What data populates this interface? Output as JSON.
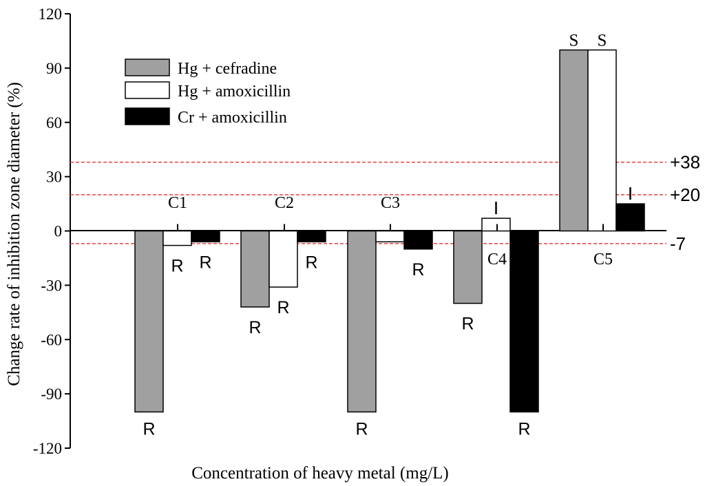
{
  "chart_data": {
    "type": "bar",
    "ylabel": "Change rate of inhibition zone diameter (%)",
    "xlabel": "Concentration of heavy metal (mg/L)",
    "ylim": [
      -120,
      120
    ],
    "yticks": [
      120,
      90,
      60,
      30,
      0,
      -30,
      -60,
      -90,
      -120
    ],
    "categories": [
      "C1",
      "C2",
      "C3",
      "C4",
      "C5"
    ],
    "series": [
      {
        "name": "Hg + cefradine",
        "color": "#a0a0a0",
        "values": [
          -100,
          -42,
          -100,
          -40,
          100
        ],
        "markers": [
          "R",
          "R",
          "R",
          "R",
          "S"
        ]
      },
      {
        "name": "Hg + amoxicillin",
        "color": "#ffffff",
        "values": [
          -8,
          -31,
          -6,
          7,
          100
        ],
        "markers": [
          "R",
          "R",
          "",
          "I",
          "S"
        ]
      },
      {
        "name": "Cr + amoxicillin",
        "color": "#000000",
        "values": [
          -6,
          -6,
          -10,
          -100,
          15
        ],
        "markers": [
          "R",
          "R",
          "R",
          "R",
          "I"
        ]
      }
    ],
    "reference_lines": [
      {
        "value": 38,
        "label": "+38",
        "color": "#e8403c"
      },
      {
        "value": 20,
        "label": "+20",
        "color": "#e8403c"
      },
      {
        "value": -7,
        "label": "-7",
        "color": "#e8403c"
      }
    ],
    "legend_position": "top-left"
  }
}
